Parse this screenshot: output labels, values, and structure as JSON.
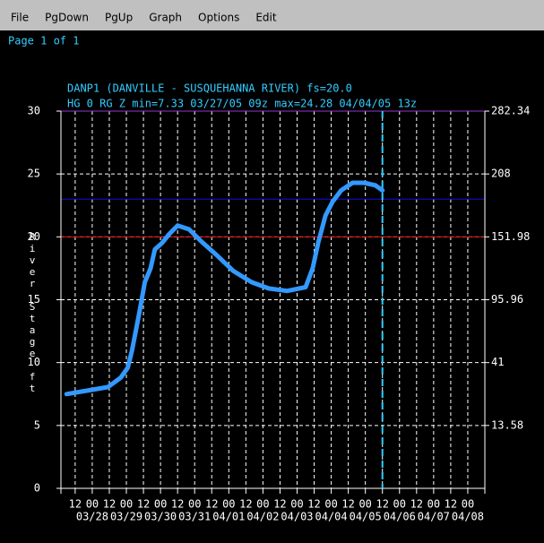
{
  "menu": [
    "File",
    "PgDown",
    "PgUp",
    "Graph",
    "Options",
    "Edit"
  ],
  "page_label": "Page 1 of 1",
  "chart_data": {
    "type": "line",
    "title": "DANP1 (DANVILLE - SUSQUEHANNA RIVER) fs=20.0",
    "subtitle": "HG 0 RG Z min=7.33 03/27/05 09z max=24.28 04/04/05 13z",
    "ylabel": "River Stage ft",
    "ylim": [
      0,
      30
    ],
    "yticks": [
      0,
      5,
      10,
      15,
      20,
      25,
      30
    ],
    "flow_ticks": [
      {
        "stage": 5,
        "flow": 13.58
      },
      {
        "stage": 10,
        "flow": 41.0
      },
      {
        "stage": 15,
        "flow": 95.96
      },
      {
        "stage": 20,
        "flow": 151.98
      },
      {
        "stage": 25,
        "flow": 208.0
      },
      {
        "stage": 30,
        "flow": 282.34
      }
    ],
    "xlim": [
      "03/27 02",
      "04/08 12"
    ],
    "xticks": [
      {
        "value": "03/27 12",
        "label": "12"
      },
      {
        "value": "03/28 00",
        "label": "00"
      },
      {
        "value": "03/28 12",
        "label": "12"
      },
      {
        "value": "03/29 00",
        "label": "00"
      },
      {
        "value": "03/29 12",
        "label": "12"
      },
      {
        "value": "03/30 00",
        "label": "00"
      },
      {
        "value": "03/30 12",
        "label": "12"
      },
      {
        "value": "03/31 00",
        "label": "00"
      },
      {
        "value": "03/31 12",
        "label": "12"
      },
      {
        "value": "04/01 00",
        "label": "00"
      },
      {
        "value": "04/01 12",
        "label": "12"
      },
      {
        "value": "04/02 00",
        "label": "00"
      },
      {
        "value": "04/02 12",
        "label": "12"
      },
      {
        "value": "04/03 00",
        "label": "00"
      },
      {
        "value": "04/03 12",
        "label": "12"
      },
      {
        "value": "04/04 00",
        "label": "00"
      },
      {
        "value": "04/04 12",
        "label": "12"
      },
      {
        "value": "04/05 00",
        "label": "00"
      },
      {
        "value": "04/05 12",
        "label": "12"
      },
      {
        "value": "04/06 00",
        "label": "00"
      },
      {
        "value": "04/06 12",
        "label": "12"
      },
      {
        "value": "04/07 00",
        "label": "00"
      },
      {
        "value": "04/07 12",
        "label": "12"
      },
      {
        "value": "04/08 00",
        "label": "00"
      }
    ],
    "date_labels": [
      {
        "value": "03/28 00",
        "label": "03/28"
      },
      {
        "value": "03/29 00",
        "label": "03/29"
      },
      {
        "value": "03/30 00",
        "label": "03/30"
      },
      {
        "value": "03/31 00",
        "label": "03/31"
      },
      {
        "value": "04/01 00",
        "label": "04/01"
      },
      {
        "value": "04/02 00",
        "label": "04/02"
      },
      {
        "value": "04/03 00",
        "label": "04/03"
      },
      {
        "value": "04/04 00",
        "label": "04/04"
      },
      {
        "value": "04/05 00",
        "label": "04/05"
      },
      {
        "value": "04/06 00",
        "label": "04/06"
      },
      {
        "value": "04/07 00",
        "label": "04/07"
      },
      {
        "value": "04/08 00",
        "label": "04/08"
      }
    ],
    "grid": true,
    "levels": [
      {
        "value": 30,
        "color": "#9933cc"
      },
      {
        "value": 23,
        "color": "#1010e0"
      },
      {
        "value": 20,
        "color": "#e01010"
      }
    ],
    "now": {
      "x": "04/05 12",
      "color": "#33ccff"
    },
    "series": [
      {
        "color": "#3399ff",
        "x": [
          "03/27 06",
          "03/27 22",
          "03/28 11",
          "03/28 20",
          "03/29 01",
          "03/29 04",
          "03/29 09",
          "03/29 13",
          "03/29 17",
          "03/29 20",
          "03/30 01",
          "03/30 06",
          "03/30 12",
          "03/30 20",
          "03/31 05",
          "03/31 15",
          "04/01 03",
          "04/01 16",
          "04/02 04",
          "04/02 17",
          "04/03 06",
          "04/03 11",
          "04/03 15",
          "04/03 20",
          "04/04 01",
          "04/04 07",
          "04/04 15",
          "04/04 23",
          "04/05 07",
          "04/05 12"
        ],
        "values": [
          7.5,
          7.8,
          8.05,
          8.8,
          9.6,
          11.0,
          13.9,
          16.4,
          17.5,
          19.0,
          19.5,
          20.2,
          20.9,
          20.6,
          19.6,
          18.6,
          17.3,
          16.4,
          15.9,
          15.7,
          16.0,
          17.5,
          19.6,
          21.7,
          22.8,
          23.7,
          24.3,
          24.3,
          24.1,
          23.7
        ]
      }
    ]
  }
}
